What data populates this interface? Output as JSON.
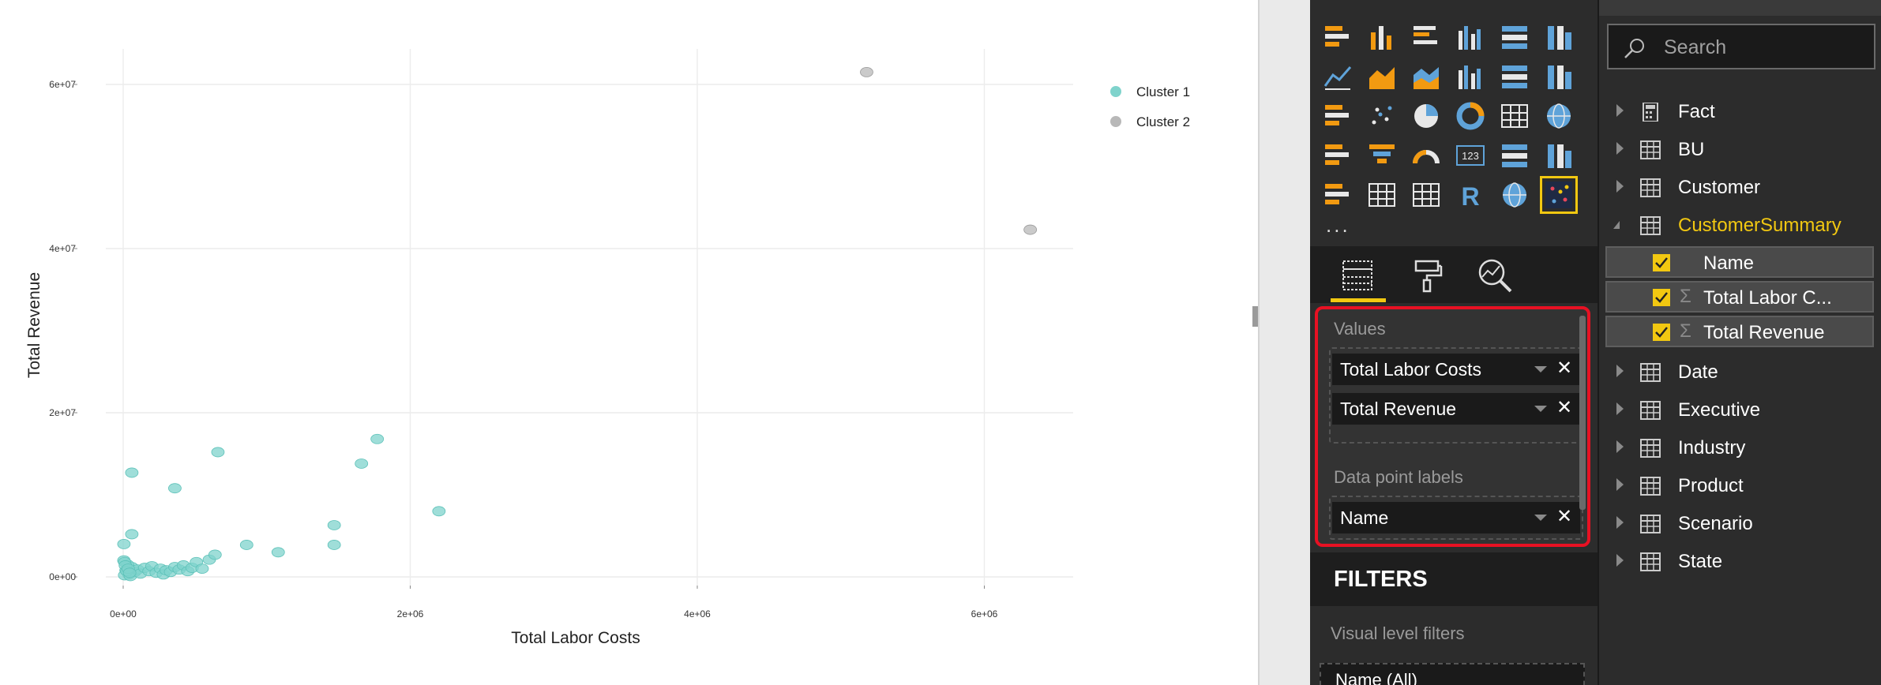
{
  "chart_data": {
    "type": "scatter",
    "xlabel": "Total Labor Costs",
    "ylabel": "Total Revenue",
    "xlim": [
      -300000,
      6650000
    ],
    "ylim": [
      -2500000,
      64000000
    ],
    "x_ticks": [
      0,
      2000000,
      4000000,
      6000000
    ],
    "x_tick_labels": [
      "0e+00",
      "2e+06",
      "4e+06",
      "6e+06"
    ],
    "y_ticks": [
      0,
      20000000,
      40000000,
      60000000
    ],
    "y_tick_labels": [
      "0e+00",
      "2e+07",
      "4e+07",
      "6e+07"
    ],
    "grid": true,
    "legend_position": "top-right",
    "series": [
      {
        "name": "Cluster 1",
        "color": "#7fd3cc",
        "points": [
          [
            20000,
            800000
          ],
          [
            40000,
            300000
          ],
          [
            60000,
            1200000
          ],
          [
            10000,
            200000
          ],
          [
            80000,
            600000
          ],
          [
            30000,
            1500000
          ],
          [
            50000,
            100000
          ],
          [
            100000,
            900000
          ],
          [
            120000,
            400000
          ],
          [
            150000,
            1100000
          ],
          [
            180000,
            700000
          ],
          [
            200000,
            1300000
          ],
          [
            230000,
            500000
          ],
          [
            260000,
            1000000
          ],
          [
            280000,
            300000
          ],
          [
            300000,
            800000
          ],
          [
            330000,
            600000
          ],
          [
            360000,
            1200000
          ],
          [
            390000,
            900000
          ],
          [
            420000,
            1400000
          ],
          [
            450000,
            700000
          ],
          [
            480000,
            1100000
          ],
          [
            510000,
            1800000
          ],
          [
            550000,
            1000000
          ],
          [
            600000,
            2100000
          ],
          [
            640000,
            2700000
          ],
          [
            860000,
            3900000
          ],
          [
            1080000,
            3000000
          ],
          [
            1470000,
            3900000
          ],
          [
            1470000,
            6300000
          ],
          [
            1660000,
            13800000
          ],
          [
            1770000,
            16800000
          ],
          [
            2200000,
            8000000
          ],
          [
            660000,
            15200000
          ],
          [
            360000,
            10800000
          ],
          [
            60000,
            12700000
          ],
          [
            60000,
            5200000
          ],
          [
            5000,
            4000000
          ],
          [
            5000,
            2000000
          ],
          [
            10000,
            1800000
          ],
          [
            15000,
            1400000
          ],
          [
            25000,
            700000
          ],
          [
            35000,
            1000000
          ],
          [
            45000,
            500000
          ]
        ]
      },
      {
        "name": "Cluster 2",
        "color": "#b8b8b8",
        "points": [
          [
            5180000,
            61500000
          ],
          [
            6320000,
            42300000
          ]
        ]
      }
    ]
  },
  "visualizations": {
    "more_label": "...",
    "icons": [
      "stacked-bar-icon",
      "stacked-column-icon",
      "clustered-bar-icon",
      "clustered-column-icon",
      "100-stacked-bar-icon",
      "100-stacked-column-icon",
      "line-chart-icon",
      "area-chart-icon",
      "stacked-area-icon",
      "line-clustered-column-icon",
      "line-stacked-column-icon",
      "ribbon-chart-icon",
      "waterfall-icon",
      "scatter-chart-icon",
      "pie-chart-icon",
      "donut-chart-icon",
      "treemap-icon",
      "map-icon",
      "filled-map-icon",
      "funnel-icon",
      "gauge-icon",
      "card-icon",
      "multi-row-card-icon",
      "kpi-icon",
      "slicer-icon",
      "table-icon",
      "matrix-icon",
      "r-visual-icon",
      "arcgis-globe-icon",
      "cluster-custom-visual-icon"
    ],
    "tabs": [
      "fields-tab-icon",
      "format-tab-icon",
      "analytics-tab-icon"
    ]
  },
  "wells": {
    "values_title": "Values",
    "values": [
      "Total Labor Costs",
      "Total Revenue"
    ],
    "labels_title": "Data point labels",
    "labels": [
      "Name"
    ]
  },
  "filters": {
    "header": "FILTERS",
    "visual_level": "Visual level filters",
    "pill": "Name (All)"
  },
  "fields": {
    "search_placeholder": "Search",
    "tables": [
      {
        "label": "Fact",
        "icon": "calculator-icon"
      },
      {
        "label": "BU",
        "icon": "table-icon"
      },
      {
        "label": "Customer",
        "icon": "table-icon"
      },
      {
        "label": "CustomerSummary",
        "icon": "table-icon",
        "expanded": true
      },
      {
        "label": "Date",
        "icon": "table-icon"
      },
      {
        "label": "Executive",
        "icon": "table-icon"
      },
      {
        "label": "Industry",
        "icon": "table-icon"
      },
      {
        "label": "Product",
        "icon": "table-icon"
      },
      {
        "label": "Scenario",
        "icon": "table-icon"
      },
      {
        "label": "State",
        "icon": "table-icon"
      }
    ],
    "customer_summary_fields": [
      {
        "label": "Name",
        "checked": true,
        "sigma": false
      },
      {
        "label": "Total Labor C...",
        "checked": true,
        "sigma": true
      },
      {
        "label": "Total Revenue",
        "checked": true,
        "sigma": true
      }
    ]
  }
}
